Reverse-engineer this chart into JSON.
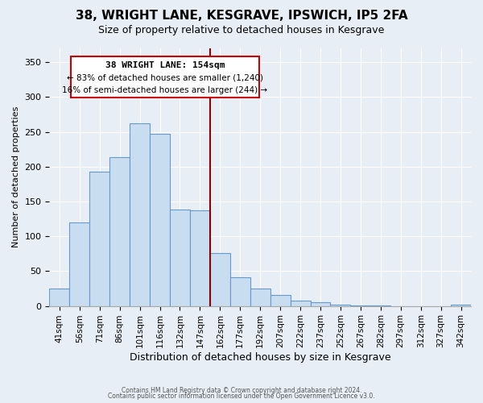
{
  "title": "38, WRIGHT LANE, KESGRAVE, IPSWICH, IP5 2FA",
  "subtitle": "Size of property relative to detached houses in Kesgrave",
  "xlabel": "Distribution of detached houses by size in Kesgrave",
  "ylabel": "Number of detached properties",
  "bar_labels": [
    "41sqm",
    "56sqm",
    "71sqm",
    "86sqm",
    "101sqm",
    "116sqm",
    "132sqm",
    "147sqm",
    "162sqm",
    "177sqm",
    "192sqm",
    "207sqm",
    "222sqm",
    "237sqm",
    "252sqm",
    "267sqm",
    "282sqm",
    "297sqm",
    "312sqm",
    "327sqm",
    "342sqm"
  ],
  "bar_values": [
    25,
    120,
    193,
    214,
    262,
    247,
    138,
    137,
    76,
    41,
    25,
    16,
    8,
    5,
    2,
    1,
    1,
    0,
    0,
    0,
    2
  ],
  "bar_color": "#c8ddf0",
  "bar_edge_color": "#6699cc",
  "highlight_label": "38 WRIGHT LANE: 154sqm",
  "annotation_line1": "← 83% of detached houses are smaller (1,240)",
  "annotation_line2": "16% of semi-detached houses are larger (244) →",
  "vline_color": "#8b0000",
  "ylim": [
    0,
    370
  ],
  "xlim_left": -0.5,
  "xlim_right": 20.5,
  "footer1": "Contains HM Land Registry data © Crown copyright and database right 2024.",
  "footer2": "Contains public sector information licensed under the Open Government Licence v3.0.",
  "background_color": "#e8eef5",
  "plot_bg_color": "#e8eef5",
  "title_fontsize": 11,
  "subtitle_fontsize": 9,
  "annotation_box_facecolor": "#ffffff",
  "annotation_box_edgecolor": "#cc0000",
  "yticks": [
    0,
    50,
    100,
    150,
    200,
    250,
    300,
    350
  ]
}
